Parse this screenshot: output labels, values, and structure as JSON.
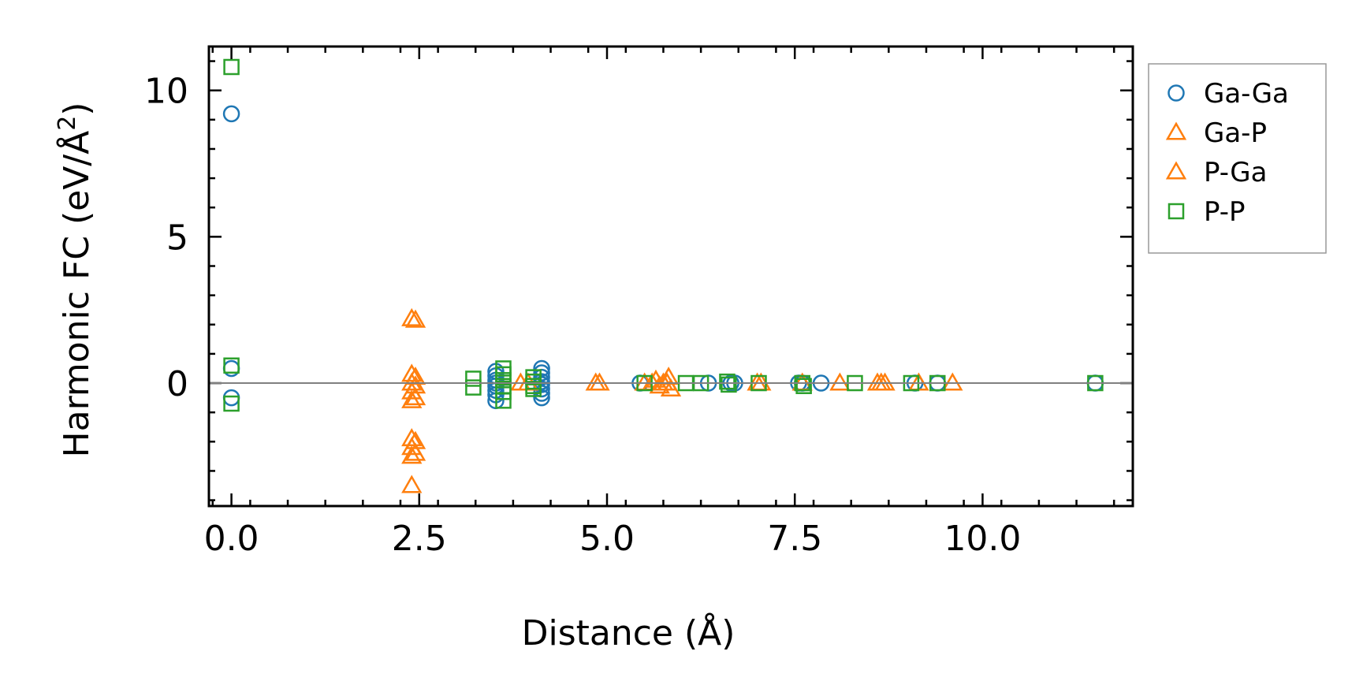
{
  "chart_data": {
    "type": "scatter",
    "xlabel": "Distance (Å)",
    "ylabel_main": "Harmonic FC (eV/Å",
    "ylabel_sup": "2",
    "ylabel_close": ")",
    "xlim": [
      -0.3,
      12.0
    ],
    "ylim": [
      -4.2,
      11.5
    ],
    "x_ticks": [
      0.0,
      2.5,
      5.0,
      7.5,
      10.0
    ],
    "x_tick_labels": [
      "0.0",
      "2.5",
      "5.0",
      "7.5",
      "10.0"
    ],
    "y_ticks": [
      0,
      5,
      10
    ],
    "y_tick_labels": [
      "0",
      "5",
      "10"
    ],
    "zero_line": true,
    "grid": false,
    "legend_placement": "outside-right-top",
    "series": [
      {
        "name": "Ga-Ga",
        "marker": "circle",
        "color": "#1f77b4",
        "points": [
          [
            0.0,
            9.2
          ],
          [
            0.0,
            0.5
          ],
          [
            0.0,
            -0.5
          ],
          [
            3.52,
            0.4
          ],
          [
            3.52,
            0.25
          ],
          [
            3.52,
            0.1
          ],
          [
            3.52,
            -0.1
          ],
          [
            3.52,
            -0.25
          ],
          [
            3.52,
            -0.4
          ],
          [
            3.52,
            -0.6
          ],
          [
            3.52,
            0.0
          ],
          [
            4.13,
            0.5
          ],
          [
            4.13,
            0.35
          ],
          [
            4.13,
            0.2
          ],
          [
            4.13,
            0.05
          ],
          [
            4.13,
            -0.05
          ],
          [
            4.13,
            -0.2
          ],
          [
            4.13,
            -0.35
          ],
          [
            4.13,
            -0.5
          ],
          [
            5.44,
            0.0
          ],
          [
            6.35,
            0.0
          ],
          [
            6.65,
            0.0
          ],
          [
            6.7,
            0.0
          ],
          [
            7.55,
            0.0
          ],
          [
            7.6,
            0.0
          ],
          [
            7.85,
            0.0
          ],
          [
            9.1,
            0.0
          ],
          [
            9.4,
            0.0
          ],
          [
            11.5,
            0.0
          ]
        ]
      },
      {
        "name": "Ga-P",
        "marker": "triangle",
        "color": "#ff7f0e",
        "points": [
          [
            2.4,
            2.2
          ],
          [
            2.4,
            0.3
          ],
          [
            2.4,
            0.0
          ],
          [
            2.4,
            -0.3
          ],
          [
            2.4,
            -0.6
          ],
          [
            2.4,
            -1.9
          ],
          [
            2.4,
            -2.2
          ],
          [
            2.4,
            -2.5
          ],
          [
            2.4,
            -3.5
          ],
          [
            3.85,
            0.0
          ],
          [
            3.95,
            0.0
          ],
          [
            4.85,
            0.0
          ],
          [
            5.6,
            0.0
          ],
          [
            5.75,
            0.0
          ],
          [
            5.8,
            0.0
          ],
          [
            7.0,
            0.0
          ],
          [
            7.6,
            0.0
          ],
          [
            8.1,
            0.0
          ],
          [
            8.6,
            0.0
          ],
          [
            8.7,
            0.0
          ],
          [
            9.6,
            0.0
          ]
        ]
      },
      {
        "name": "P-Ga",
        "marker": "triangle",
        "color": "#ff7f0e",
        "points": [
          [
            2.45,
            2.15
          ],
          [
            2.45,
            0.2
          ],
          [
            2.45,
            -0.1
          ],
          [
            2.45,
            -0.5
          ],
          [
            2.45,
            -2.0
          ],
          [
            2.45,
            -2.4
          ],
          [
            4.9,
            0.0
          ],
          [
            5.5,
            0.0
          ],
          [
            5.65,
            0.1
          ],
          [
            5.7,
            -0.1
          ],
          [
            5.82,
            0.2
          ],
          [
            5.85,
            -0.2
          ],
          [
            7.05,
            0.0
          ],
          [
            8.65,
            0.0
          ],
          [
            9.15,
            0.0
          ]
        ]
      },
      {
        "name": "P-P",
        "marker": "square",
        "color": "#2ca02c",
        "points": [
          [
            0.0,
            10.8
          ],
          [
            0.0,
            0.6
          ],
          [
            0.0,
            -0.7
          ],
          [
            3.22,
            0.15
          ],
          [
            3.22,
            -0.15
          ],
          [
            3.62,
            0.5
          ],
          [
            3.62,
            0.3
          ],
          [
            3.62,
            0.1
          ],
          [
            3.62,
            -0.1
          ],
          [
            3.62,
            -0.3
          ],
          [
            3.62,
            -0.6
          ],
          [
            4.02,
            0.2
          ],
          [
            4.02,
            -0.1
          ],
          [
            4.02,
            0.05
          ],
          [
            4.02,
            -0.2
          ],
          [
            5.5,
            0.0
          ],
          [
            6.05,
            0.0
          ],
          [
            6.25,
            0.0
          ],
          [
            6.6,
            0.05
          ],
          [
            6.62,
            -0.05
          ],
          [
            7.02,
            0.0
          ],
          [
            7.6,
            0.0
          ],
          [
            7.62,
            -0.1
          ],
          [
            8.3,
            0.0
          ],
          [
            9.05,
            0.0
          ],
          [
            9.4,
            0.0
          ],
          [
            11.5,
            0.0
          ]
        ]
      }
    ]
  }
}
